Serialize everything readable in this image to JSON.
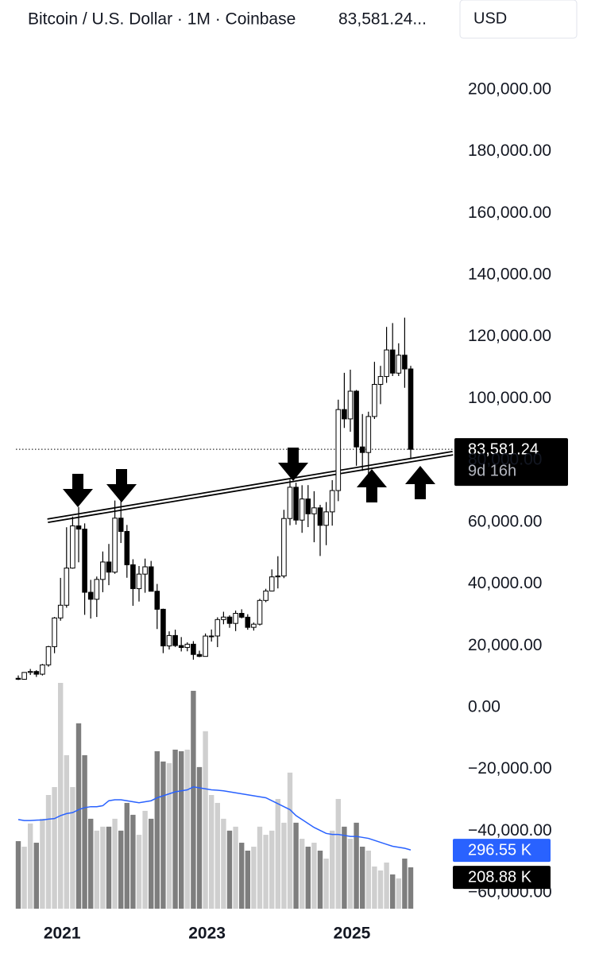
{
  "chart_data": {
    "type": "candlestick",
    "title": "Bitcoin / U.S. Dollar · 1M · Coinbase",
    "header_price": "83,581.24...",
    "currency": "USD",
    "categories": [
      null,
      null,
      null,
      null,
      null,
      null,
      null,
      "2021",
      null,
      null,
      null,
      null,
      null,
      null,
      null,
      null,
      null,
      null,
      null,
      null,
      null,
      null,
      null,
      null,
      null,
      null,
      null,
      null,
      null,
      null,
      null,
      "2023",
      null,
      null,
      null,
      null,
      null,
      null,
      null,
      null,
      null,
      null,
      null,
      null,
      null,
      null,
      null,
      null,
      null,
      null,
      null,
      null,
      null,
      null,
      null,
      "2025",
      null,
      null,
      null,
      null,
      null,
      null,
      null,
      null,
      null,
      null
    ],
    "open": [
      9450,
      9140,
      11350,
      11650,
      10780,
      13800,
      19700,
      28990,
      33110,
      45140,
      58800,
      57750,
      37300,
      35040,
      41460,
      47100,
      43820,
      61300,
      57000,
      46210,
      38480,
      43180,
      45540,
      37630,
      31800,
      19940,
      23300,
      20050,
      19430,
      20490,
      17170,
      16540,
      23130,
      23150,
      28470,
      29270,
      27220,
      30480,
      29230,
      25940,
      26970,
      34650,
      37720,
      42280,
      42580,
      61180,
      71300,
      60670,
      67500,
      62700,
      64630,
      58970,
      63330,
      70230,
      96450,
      93430,
      102400,
      84350,
      82550,
      94200,
      104600,
      107150,
      115750,
      108250,
      114050,
      109600
    ],
    "high": [
      10380,
      11450,
      12480,
      12070,
      14100,
      19950,
      29300,
      41960,
      58350,
      61790,
      64900,
      59600,
      41330,
      42400,
      50500,
      52950,
      67000,
      69000,
      59100,
      47990,
      45800,
      48200,
      47450,
      40000,
      31990,
      24650,
      25200,
      22800,
      21090,
      21480,
      18390,
      23960,
      25250,
      29200,
      31000,
      29840,
      31390,
      31800,
      30200,
      27500,
      35200,
      38420,
      44700,
      48970,
      64000,
      73790,
      72800,
      71960,
      71990,
      70020,
      65600,
      66500,
      73600,
      99650,
      108350,
      109350,
      102800,
      95000,
      95760,
      111900,
      110600,
      123200,
      124450,
      117900,
      126200,
      110600
    ],
    "low": [
      8900,
      9000,
      10530,
      9900,
      10370,
      13200,
      17580,
      28100,
      32300,
      44950,
      47000,
      30000,
      28800,
      29300,
      37330,
      39600,
      43290,
      53250,
      42000,
      32930,
      34300,
      37150,
      37700,
      25400,
      17600,
      18780,
      19600,
      18150,
      18200,
      15480,
      16300,
      16500,
      21350,
      19550,
      26940,
      25800,
      24750,
      28860,
      25170,
      24900,
      26560,
      34100,
      37600,
      38550,
      41880,
      59000,
      59200,
      56550,
      58400,
      53500,
      49050,
      52550,
      58870,
      66800,
      90500,
      89250,
      78250,
      76600,
      74400,
      93400,
      98200,
      105100,
      107300,
      107300,
      103500,
      80600
    ],
    "close": [
      9140,
      11350,
      11650,
      10780,
      13800,
      19700,
      28990,
      33110,
      45140,
      58800,
      57750,
      37300,
      35040,
      41460,
      47100,
      43820,
      61300,
      57000,
      46210,
      38480,
      43180,
      45540,
      37630,
      31800,
      19940,
      23300,
      20050,
      19430,
      20490,
      17170,
      16540,
      23130,
      23150,
      28470,
      29270,
      27220,
      30480,
      29230,
      25940,
      26970,
      34650,
      37720,
      42280,
      42580,
      61180,
      71300,
      60670,
      67500,
      62700,
      64630,
      58970,
      63330,
      70230,
      96450,
      93430,
      102400,
      84350,
      82550,
      94200,
      104600,
      107150,
      115750,
      108250,
      114050,
      109600,
      83581.24
    ],
    "last_price_label": "83,581.24",
    "countdown": "9d 16h",
    "up_color": "#ffffff",
    "down_color": "#000000",
    "ylim": [
      -66000,
      228000
    ],
    "yticks": [
      {
        "value": -60000,
        "label": "−60,000.00"
      },
      {
        "value": -40000,
        "label": "−40,000.00"
      },
      {
        "value": -20000,
        "label": "−20,000.00"
      },
      {
        "value": 0,
        "label": "0.00"
      },
      {
        "value": 20000,
        "label": "20,000.00"
      },
      {
        "value": 40000,
        "label": "40,000.00"
      },
      {
        "value": 60000,
        "label": "60,000.00"
      },
      {
        "value": 80000,
        "label": "80,000.00"
      },
      {
        "value": 100000,
        "label": "100,000.00"
      },
      {
        "value": 120000,
        "label": "120,000.00"
      },
      {
        "value": 140000,
        "label": "140,000.00"
      },
      {
        "value": 160000,
        "label": "160,000.00"
      },
      {
        "value": 180000,
        "label": "180,000.00"
      },
      {
        "value": 200000,
        "label": "200,000.00"
      }
    ],
    "volume": {
      "values": [
        341,
        313,
        430,
        333,
        454,
        574,
        614,
        1140,
        775,
        614,
        936,
        775,
        454,
        394,
        414,
        414,
        454,
        394,
        534,
        474,
        373,
        494,
        454,
        795,
        743,
        735,
        803,
        795,
        803,
        1100,
        715,
        896,
        574,
        534,
        454,
        394,
        414,
        333,
        293,
        313,
        414,
        373,
        394,
        554,
        434,
        687,
        434,
        353,
        313,
        333,
        293,
        253,
        394,
        554,
        414,
        353,
        434,
        313,
        293,
        213,
        193,
        233,
        173,
        153,
        253,
        208.88
      ],
      "last_label": "208.88 K",
      "up_color": "#cfcfcf",
      "down_color": "#7e7e7e",
      "vlim": [
        0,
        1160
      ]
    },
    "volume_ma": {
      "values": [
        450,
        445,
        445,
        447,
        448,
        452,
        455,
        470,
        480,
        485,
        500,
        510,
        515,
        515,
        520,
        545,
        550,
        550,
        545,
        540,
        535,
        540,
        545,
        560,
        570,
        580,
        590,
        595,
        600,
        615,
        610,
        605,
        600,
        598,
        595,
        590,
        585,
        580,
        575,
        570,
        565,
        560,
        545,
        530,
        515,
        500,
        470,
        450,
        430,
        410,
        395,
        380,
        375,
        375,
        370,
        365,
        365,
        360,
        355,
        345,
        335,
        325,
        315,
        310,
        305,
        296.55
      ],
      "last_label": "296.55 K",
      "color": "#2962ff"
    }
  }
}
